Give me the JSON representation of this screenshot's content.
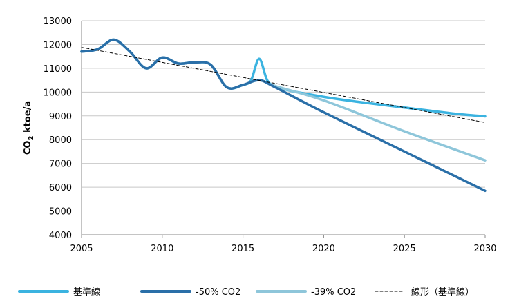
{
  "chart_data": {
    "type": "line",
    "xlim": [
      2005,
      2030
    ],
    "ylim": [
      4000,
      13000
    ],
    "x_ticks": [
      2005,
      2010,
      2015,
      2020,
      2025,
      2030
    ],
    "y_ticks": [
      4000,
      5000,
      6000,
      7000,
      8000,
      9000,
      10000,
      11000,
      12000,
      13000
    ],
    "ylabel_main": "CO",
    "ylabel_sub": "2",
    "ylabel_rest": " ktoe/a",
    "grid": "horizontal",
    "legend_position": "bottom",
    "series": [
      {
        "name": "基準線",
        "color": "#3bb3e0",
        "style": "solid",
        "x": [
          2005,
          2006,
          2007,
          2008,
          2009,
          2010,
          2011,
          2012,
          2013,
          2014,
          2015,
          2015.5,
          2016,
          2016.5,
          2017,
          2018,
          2020,
          2022,
          2025,
          2028,
          2030
        ],
        "y": [
          11700,
          11800,
          12200,
          11700,
          11000,
          11450,
          11200,
          11250,
          11150,
          10200,
          10300,
          10500,
          11400,
          10500,
          10250,
          10050,
          9800,
          9600,
          9350,
          9100,
          8980
        ]
      },
      {
        "name": "-50% CO2",
        "color": "#2a6fa8",
        "style": "solid",
        "x": [
          2005,
          2006,
          2007,
          2008,
          2009,
          2010,
          2011,
          2012,
          2013,
          2014,
          2015,
          2016,
          2017,
          2020,
          2025,
          2030
        ],
        "y": [
          11700,
          11800,
          12200,
          11700,
          11000,
          11450,
          11200,
          11250,
          11150,
          10200,
          10300,
          10500,
          10200,
          9150,
          7500,
          5850
        ]
      },
      {
        "name": "-39% CO2",
        "color": "#8ec6da",
        "style": "solid",
        "x": [
          2005,
          2006,
          2007,
          2008,
          2009,
          2010,
          2011,
          2012,
          2013,
          2014,
          2015,
          2016,
          2017,
          2020,
          2025,
          2030
        ],
        "y": [
          11700,
          11800,
          12200,
          11700,
          11000,
          11450,
          11200,
          11250,
          11150,
          10200,
          10300,
          10500,
          10250,
          9650,
          8350,
          7130
        ]
      },
      {
        "name": "線形（基準線）",
        "color": "#000000",
        "style": "dashed",
        "x": [
          2005,
          2030
        ],
        "y": [
          11880,
          8720
        ]
      }
    ]
  }
}
